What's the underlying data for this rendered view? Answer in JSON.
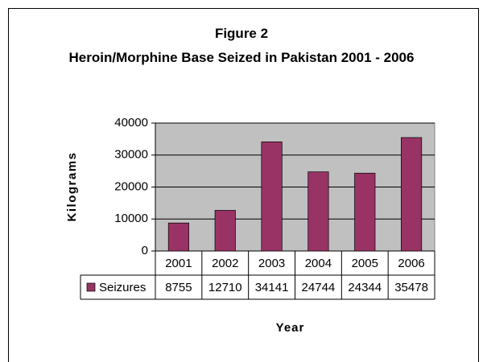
{
  "chart_data": {
    "type": "bar",
    "title": "Figure 2",
    "subtitle": "Heroin/Morphine Base Seized in Pakistan 2001 - 2006",
    "x_label": "Year",
    "y_label": "Kilograms",
    "categories": [
      "2001",
      "2002",
      "2003",
      "2004",
      "2005",
      "2006"
    ],
    "series": [
      {
        "name": "Seizures",
        "color": "#993366",
        "values": [
          8755,
          12710,
          34141,
          24744,
          24344,
          35478
        ]
      }
    ],
    "ylim": [
      0,
      40000
    ],
    "yticks": [
      0,
      10000,
      20000,
      30000,
      40000
    ],
    "grid": true,
    "plot_background": "#c0c0c0"
  }
}
